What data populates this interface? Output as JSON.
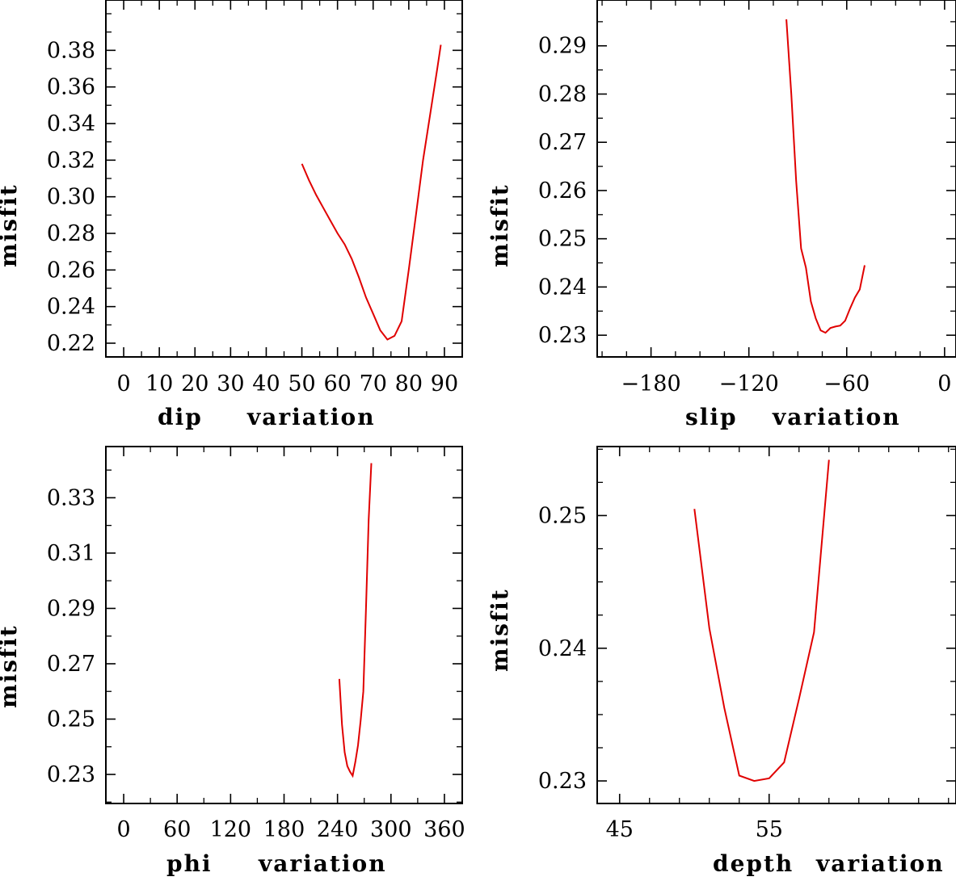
{
  "chart_data": [
    {
      "type": "line",
      "name": "dip",
      "xlabel": "dip",
      "xlabel2": "variation",
      "ylabel": "misfit",
      "xlim": [
        -5,
        95
      ],
      "ylim": [
        0.2125,
        0.4075
      ],
      "xticks": [
        0,
        10,
        20,
        30,
        40,
        50,
        60,
        70,
        80,
        90
      ],
      "xtick_labels": [
        "0",
        "10",
        "20",
        "30",
        "40",
        "50",
        "60",
        "70",
        "80",
        "90"
      ],
      "yticks": [
        0.22,
        0.24,
        0.26,
        0.28,
        0.3,
        0.32,
        0.34,
        0.36,
        0.38
      ],
      "ytick_labels": [
        "0.22",
        "0.24",
        "0.26",
        "0.28",
        "0.30",
        "0.32",
        "0.34",
        "0.36",
        "0.38"
      ],
      "series": [
        {
          "name": "misfit",
          "color": "#e00000",
          "x": [
            50,
            52,
            54,
            56,
            58,
            60,
            62,
            64,
            66,
            68,
            70,
            72,
            74,
            76,
            78,
            80,
            82,
            84,
            86,
            88,
            89
          ],
          "y": [
            0.318,
            0.309,
            0.301,
            0.294,
            0.287,
            0.28,
            0.274,
            0.266,
            0.256,
            0.245,
            0.236,
            0.227,
            0.222,
            0.224,
            0.232,
            0.26,
            0.29,
            0.32,
            0.345,
            0.37,
            0.383
          ]
        }
      ]
    },
    {
      "type": "line",
      "name": "slip",
      "xlabel": "slip",
      "xlabel2": "variation",
      "ylabel": "misfit",
      "xlim": [
        -213,
        7
      ],
      "ylim": [
        0.2255,
        0.2995
      ],
      "xticks": [
        -180,
        -120,
        -60,
        0
      ],
      "xtick_labels": [
        "−180",
        "−120",
        "−60",
        "0"
      ],
      "yticks": [
        0.23,
        0.24,
        0.25,
        0.26,
        0.27,
        0.28,
        0.29
      ],
      "ytick_labels": [
        "0.23",
        "0.24",
        "0.25",
        "0.26",
        "0.27",
        "0.28",
        "0.29"
      ],
      "series": [
        {
          "name": "misfit",
          "color": "#e00000",
          "x": [
            -97,
            -94,
            -91,
            -88,
            -85,
            -82,
            -79,
            -76,
            -73,
            -70,
            -67,
            -64,
            -61,
            -58,
            -55,
            -52,
            -49
          ],
          "y": [
            0.2955,
            0.28,
            0.262,
            0.248,
            0.244,
            0.237,
            0.2335,
            0.231,
            0.2305,
            0.2315,
            0.2318,
            0.232,
            0.233,
            0.2355,
            0.2378,
            0.2395,
            0.2445
          ]
        }
      ]
    },
    {
      "type": "line",
      "name": "phi",
      "xlabel": "phi",
      "xlabel2": "variation",
      "ylabel": "misfit",
      "xlim": [
        -20,
        380
      ],
      "ylim": [
        0.2195,
        0.3485
      ],
      "xticks": [
        0,
        60,
        120,
        180,
        240,
        300,
        360
      ],
      "xtick_labels": [
        "0",
        "60",
        "120",
        "180",
        "240",
        "300",
        "360"
      ],
      "yticks": [
        0.23,
        0.25,
        0.27,
        0.29,
        0.31,
        0.33
      ],
      "ytick_labels": [
        "0.23",
        "0.25",
        "0.27",
        "0.29",
        "0.31",
        "0.33"
      ],
      "series": [
        {
          "name": "misfit",
          "color": "#e00000",
          "x": [
            242,
            245,
            248,
            251,
            254,
            257,
            260,
            263,
            266,
            269,
            272,
            275,
            278
          ],
          "y": [
            0.2645,
            0.248,
            0.238,
            0.233,
            0.231,
            0.2295,
            0.2345,
            0.2405,
            0.2495,
            0.26,
            0.29,
            0.322,
            0.3425
          ]
        }
      ]
    },
    {
      "type": "line",
      "name": "depth",
      "xlabel": "depth",
      "xlabel2": "variation",
      "ylabel": "misfit",
      "xlim": [
        43.5,
        67.5
      ],
      "ylim": [
        0.2283,
        0.2552
      ],
      "xticks": [
        45,
        55
      ],
      "xtick_labels": [
        "45",
        "55"
      ],
      "yticks": [
        0.23,
        0.24,
        0.25
      ],
      "ytick_labels": [
        "0.23",
        "0.24",
        "0.25"
      ],
      "series": [
        {
          "name": "misfit",
          "color": "#e00000",
          "x": [
            50,
            51,
            52,
            53,
            54,
            55,
            56,
            57,
            58,
            59
          ],
          "y": [
            0.2505,
            0.2415,
            0.2355,
            0.2304,
            0.23,
            0.2302,
            0.2314,
            0.2362,
            0.2412,
            0.2542
          ]
        }
      ]
    }
  ]
}
